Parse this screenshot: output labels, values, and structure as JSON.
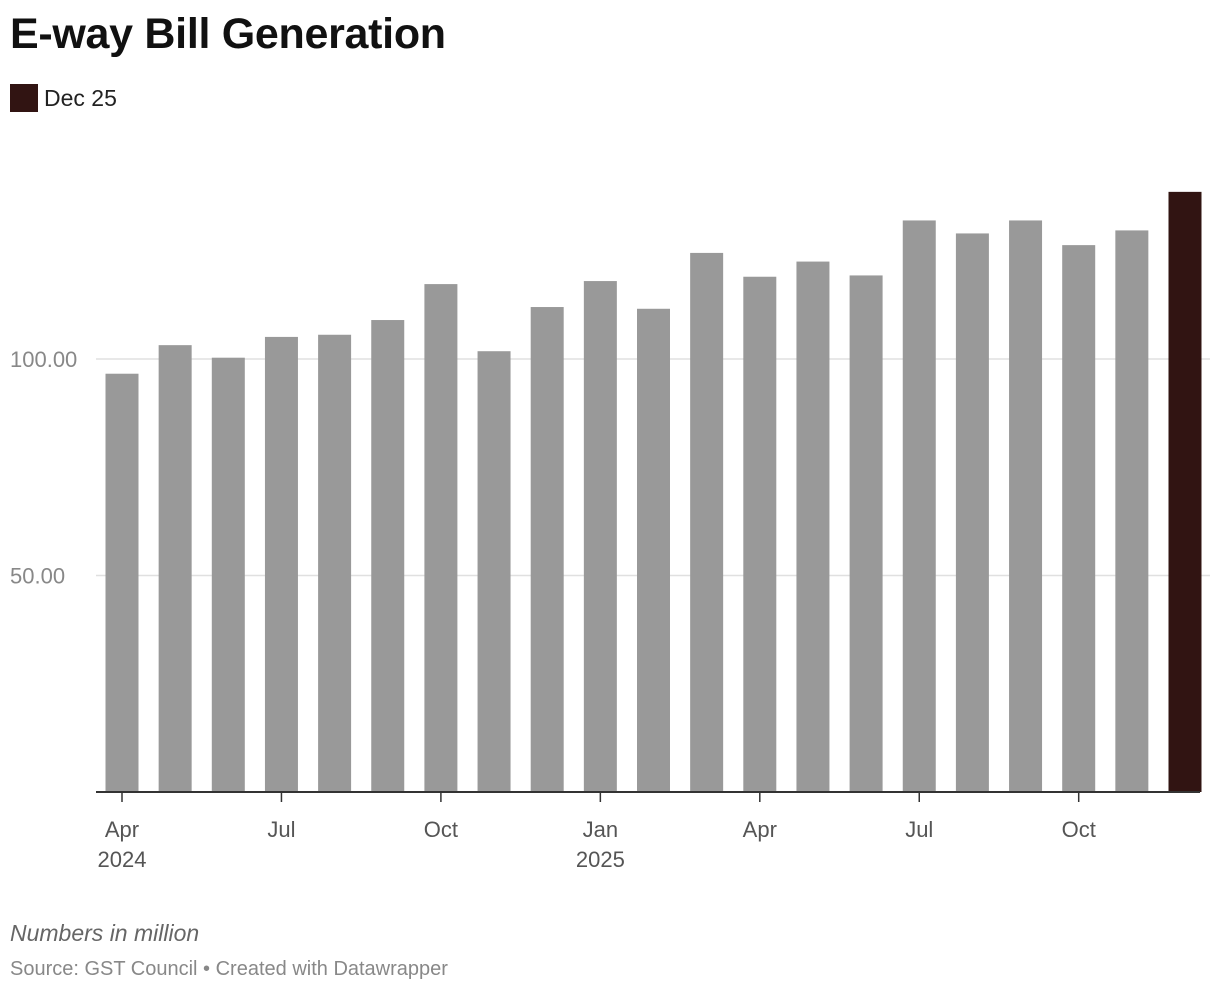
{
  "title": "E-way Bill Generation",
  "legend": {
    "label": "Dec 25",
    "color": "#311412"
  },
  "note": "Numbers in million",
  "source": "Source: GST Council • Created with Datawrapper",
  "colors": {
    "bar": "#999999",
    "highlight": "#311412",
    "grid": "#e0e0e0",
    "axis": "#333333",
    "tick_text": "#888888",
    "x_text": "#555555"
  },
  "chart_data": {
    "type": "bar",
    "title": "E-way Bill Generation",
    "xlabel": "",
    "ylabel": "",
    "ylim": [
      0,
      140
    ],
    "yticks": [
      {
        "value": 50,
        "label": "50.00"
      },
      {
        "value": 100,
        "label": "100.00"
      }
    ],
    "categories": [
      "Apr 2024",
      "May 2024",
      "Jun 2024",
      "Jul 2024",
      "Aug 2024",
      "Sep 2024",
      "Oct 2024",
      "Nov 2024",
      "Dec 2024",
      "Jan 2025",
      "Feb 2025",
      "Mar 2025",
      "Apr 2025",
      "May 2025",
      "Jun 2025",
      "Jul 2025",
      "Aug 2025",
      "Sep 2025",
      "Oct 2025",
      "Nov 2025",
      "Dec 2025"
    ],
    "values": [
      96.6,
      103.2,
      100.3,
      105.1,
      105.6,
      109.0,
      117.3,
      101.8,
      112.0,
      118.0,
      111.6,
      124.5,
      119.0,
      122.5,
      119.3,
      132.0,
      129.0,
      132.0,
      126.3,
      129.7,
      138.6
    ],
    "highlight_index": 20,
    "xticks": [
      {
        "index": 0,
        "label": "Apr",
        "sublabel": "2024"
      },
      {
        "index": 3,
        "label": "Jul"
      },
      {
        "index": 6,
        "label": "Oct"
      },
      {
        "index": 9,
        "label": "Jan",
        "sublabel": "2025"
      },
      {
        "index": 12,
        "label": "Apr"
      },
      {
        "index": 15,
        "label": "Jul"
      },
      {
        "index": 18,
        "label": "Oct"
      }
    ]
  }
}
